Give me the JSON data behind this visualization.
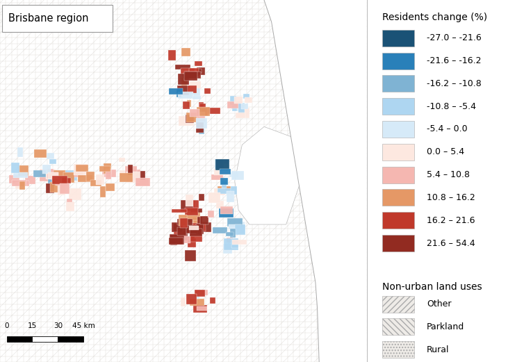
{
  "title": "Brisbane region",
  "legend_title": "Residents change (%)",
  "legend_entries": [
    {
      "label": "-27.0 – -21.6",
      "color": "#1a5276"
    },
    {
      "label": "-21.6 – -16.2",
      "color": "#2980b9"
    },
    {
      "label": "-16.2 – -10.8",
      "color": "#7fb3d3"
    },
    {
      "label": "-10.8 – -5.4",
      "color": "#aed6f1"
    },
    {
      "label": "-5.4 – 0.0",
      "color": "#d6eaf8"
    },
    {
      "label": "0.0 – 5.4",
      "color": "#fde8e0"
    },
    {
      "label": "5.4 – 10.8",
      "color": "#f5b7b1"
    },
    {
      "label": "10.8 – 16.2",
      "color": "#e59866"
    },
    {
      "label": "16.2 – 21.6",
      "color": "#c0392b"
    },
    {
      "label": "21.6 – 54.4",
      "color": "#922b21"
    }
  ],
  "nonurban_title": "Non-urban land uses",
  "nonurban_entries": [
    {
      "label": "Other",
      "hatch": "///"
    },
    {
      "label": "Parkland",
      "hatch": "\\\\\\"
    },
    {
      "label": "Rural",
      "hatch": "..."
    }
  ],
  "map_bg": "#f2f0ee",
  "legend_bg": "#ffffff",
  "border_color": "#cccccc",
  "fig_width": 7.54,
  "fig_height": 5.21,
  "dpi": 100
}
